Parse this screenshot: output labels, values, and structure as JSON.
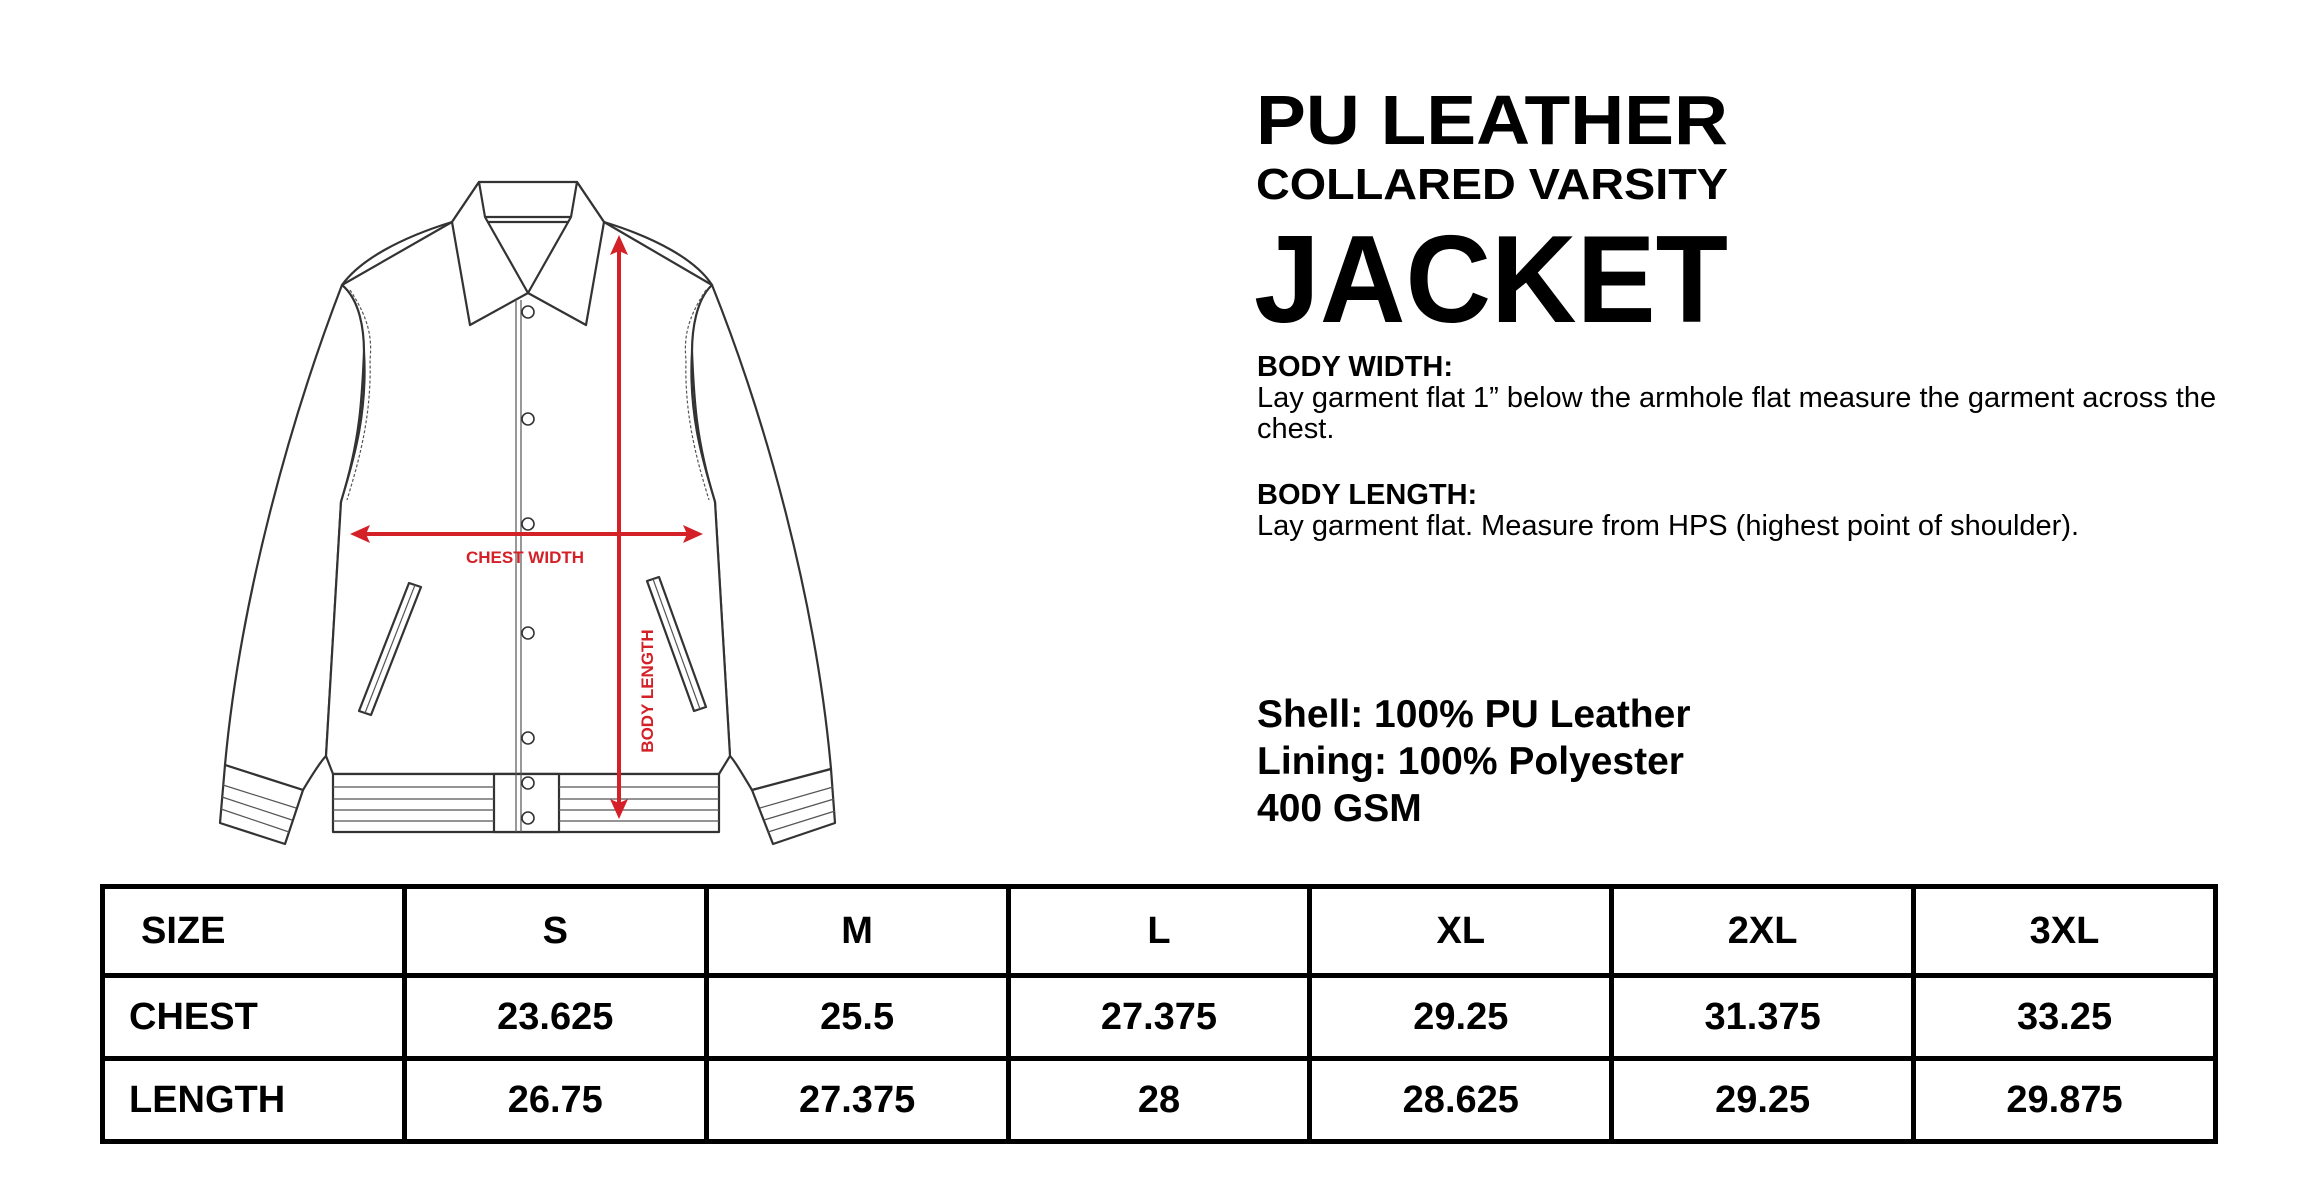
{
  "title": {
    "line1": "PU LEATHER",
    "line2": "COLLARED VARSITY",
    "line3": "JACKET"
  },
  "diagram": {
    "chest_label": "CHEST WIDTH",
    "length_label": "BODY LENGTH",
    "arrow_color": "#d42027"
  },
  "instructions": [
    {
      "heading": "BODY WIDTH:",
      "text": "Lay garment flat 1” below the armhole flat measure the garment across the chest."
    },
    {
      "heading": "BODY LENGTH:",
      "text": "Lay garment flat. Measure from HPS (highest point of shoulder)."
    }
  ],
  "specs": [
    "Shell: 100% PU Leather",
    "Lining: 100% Polyester",
    "400 GSM"
  ],
  "size_table": {
    "header": [
      "SIZE",
      "S",
      "M",
      "L",
      "XL",
      "2XL",
      "3XL"
    ],
    "rows": [
      [
        "CHEST",
        "23.625",
        "25.5",
        "27.375",
        "29.25",
        "31.375",
        "33.25"
      ],
      [
        "LENGTH",
        "26.75",
        "27.375",
        "28",
        "28.625",
        "29.25",
        "29.875"
      ]
    ]
  }
}
